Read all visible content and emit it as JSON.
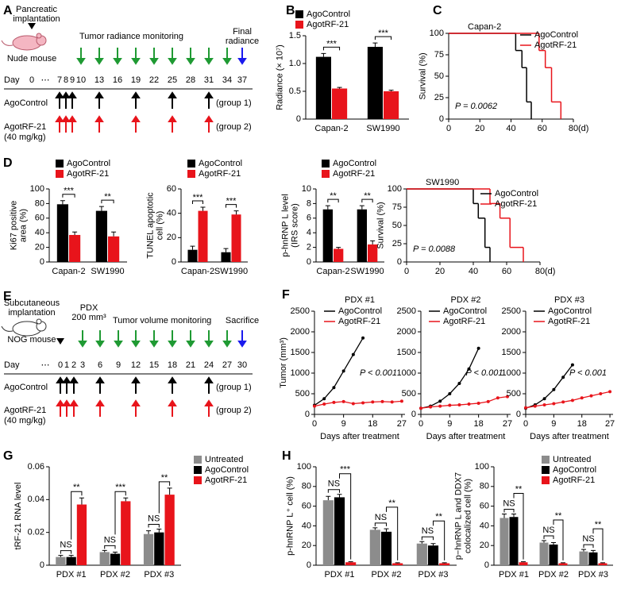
{
  "chart_data": [
    {
      "type": "bar",
      "panel": "B",
      "ylabel": "Radiance (× 10⁷)",
      "categories": [
        "Capan-2",
        "SW1990"
      ],
      "series": [
        {
          "name": "AgoControl",
          "color": "#000000",
          "values": [
            1.12,
            1.3
          ],
          "errors": [
            0.06,
            0.07
          ]
        },
        {
          "name": "AgotRF-21",
          "color": "#e8141b",
          "values": [
            0.55,
            0.5
          ],
          "errors": [
            0.02,
            0.02
          ]
        }
      ],
      "significance": [
        "***",
        "***"
      ],
      "ylim": [
        0,
        1.5
      ],
      "yticks": [
        0,
        0.5,
        {
          "value": 1,
          "label": "1.0"
        },
        1.5
      ]
    },
    {
      "type": "step",
      "panel": "C",
      "title": "Capan-2",
      "ylabel": "Survival (%)",
      "xlabel": "(d)",
      "annotation": "P = 0.0062",
      "series": [
        {
          "name": "AgoControl",
          "color": "#000000",
          "x": [
            0,
            43,
            47,
            50,
            53
          ],
          "values": [
            100,
            80,
            60,
            20,
            0
          ]
        },
        {
          "name": "AgotRF-21",
          "color": "#e8141b",
          "x": [
            0,
            58,
            62,
            66,
            72
          ],
          "values": [
            100,
            80,
            60,
            20,
            0
          ]
        }
      ],
      "xlim": [
        0,
        80
      ],
      "xticks": [
        0,
        20,
        40,
        60,
        80
      ],
      "ylim": [
        0,
        100
      ],
      "yticks": [
        0,
        25,
        50,
        75,
        100
      ]
    },
    {
      "type": "bar",
      "panel": "D",
      "ylabel": [
        "Ki67 positive",
        "area (%)"
      ],
      "categories": [
        "Capan-2",
        "SW1990"
      ],
      "series": [
        {
          "name": "AgoControl",
          "color": "#000000",
          "values": [
            79,
            70
          ],
          "errors": [
            5,
            6
          ]
        },
        {
          "name": "AgotRF-21",
          "color": "#e8141b",
          "values": [
            37,
            35
          ],
          "errors": [
            4,
            6
          ]
        }
      ],
      "significance": [
        "***",
        "**"
      ],
      "ylim": [
        0,
        100
      ],
      "yticks": [
        0,
        20,
        40,
        60,
        80,
        100
      ]
    },
    {
      "type": "bar",
      "ylabel": [
        "TUNEL apoptotic",
        "cell (%)"
      ],
      "categories": [
        "Capan-2",
        "SW1990"
      ],
      "series": [
        {
          "name": "AgoControl",
          "color": "#000000",
          "values": [
            10,
            8
          ],
          "errors": [
            3,
            3
          ]
        },
        {
          "name": "AgotRF-21",
          "color": "#e8141b",
          "values": [
            42,
            39
          ],
          "errors": [
            3,
            3
          ]
        }
      ],
      "significance": [
        "***",
        "***"
      ],
      "ylim": [
        0,
        60
      ],
      "yticks": [
        0,
        20,
        40,
        60
      ]
    },
    {
      "type": "bar",
      "ylabel": [
        "p-hnRNP L level",
        "(IRS score)"
      ],
      "categories": [
        "Capan-2",
        "SW1990"
      ],
      "series": [
        {
          "name": "AgoControl",
          "color": "#000000",
          "values": [
            7.2,
            7.2
          ],
          "errors": [
            0.5,
            0.5
          ]
        },
        {
          "name": "AgotRF-21",
          "color": "#e8141b",
          "values": [
            1.8,
            2.4
          ],
          "errors": [
            0.2,
            0.5
          ]
        }
      ],
      "significance": [
        "**",
        "**"
      ],
      "ylim": [
        0,
        10
      ],
      "yticks": [
        0,
        2,
        4,
        6,
        8,
        10
      ]
    },
    {
      "type": "step",
      "title": "SW1990",
      "ylabel": "Survival (%)",
      "xlabel": "(d)",
      "annotation": "P = 0.0088",
      "series": [
        {
          "name": "AgoControl",
          "color": "#000000",
          "x": [
            0,
            40,
            43,
            47,
            50
          ],
          "values": [
            100,
            80,
            60,
            20,
            0
          ]
        },
        {
          "name": "AgotRF-21",
          "color": "#e8141b",
          "x": [
            0,
            50,
            56,
            62,
            70
          ],
          "values": [
            100,
            80,
            60,
            20,
            0
          ]
        }
      ],
      "xlim": [
        0,
        80
      ],
      "xticks": [
        0,
        20,
        40,
        60,
        80
      ],
      "ylim": [
        0,
        100
      ],
      "yticks": [
        0,
        25,
        50,
        75,
        100
      ]
    },
    {
      "type": "line",
      "panel": "F",
      "title": "PDX #1",
      "ylabel": "Tumor (mm³)",
      "xlabel": "Days after treatment",
      "annotation": "P < 0.001",
      "x": [
        0,
        3,
        6,
        9,
        12,
        15,
        18,
        21,
        24,
        27
      ],
      "series": [
        {
          "name": "AgoControl",
          "color": "#000000",
          "values": [
            220,
            380,
            650,
            1050,
            1450,
            1850,
            null,
            null,
            null,
            null
          ]
        },
        {
          "name": "AgotRF-21",
          "color": "#e8141b",
          "values": [
            200,
            250,
            290,
            310,
            260,
            280,
            300,
            310,
            300,
            320
          ]
        }
      ],
      "xlim": [
        0,
        28
      ],
      "xticks": [
        0,
        9,
        18,
        27
      ],
      "ylim": [
        0,
        2500
      ],
      "yticks": [
        0,
        500,
        1000,
        1500,
        2000,
        2500
      ]
    },
    {
      "type": "line",
      "title": "PDX #2",
      "xlabel": "Days after treatment",
      "annotation": "P < 0.001",
      "x": [
        0,
        3,
        6,
        9,
        12,
        15,
        18,
        21,
        24,
        27
      ],
      "series": [
        {
          "name": "AgoControl",
          "color": "#000000",
          "values": [
            150,
            200,
            320,
            500,
            750,
            1100,
            1600,
            null,
            null,
            null
          ]
        },
        {
          "name": "AgotRF-21",
          "color": "#e8141b",
          "values": [
            150,
            180,
            200,
            220,
            230,
            250,
            270,
            310,
            400,
            430
          ]
        }
      ],
      "xlim": [
        0,
        28
      ],
      "xticks": [
        0,
        9,
        18,
        27
      ],
      "ylim": [
        0,
        2500
      ],
      "yticks": [
        0,
        500,
        1000,
        1500,
        2000,
        2500
      ]
    },
    {
      "type": "line",
      "title": "PDX #3",
      "xlabel": "Days after treatment",
      "annotation": "P < 0.001",
      "x": [
        0,
        3,
        6,
        9,
        12,
        15,
        18,
        21,
        24,
        27
      ],
      "series": [
        {
          "name": "AgoControl",
          "color": "#000000",
          "values": [
            150,
            230,
            380,
            600,
            900,
            1200,
            null,
            null,
            null,
            null
          ]
        },
        {
          "name": "AgotRF-21",
          "color": "#e8141b",
          "values": [
            160,
            200,
            230,
            260,
            300,
            340,
            400,
            450,
            500,
            550
          ]
        }
      ],
      "xlim": [
        0,
        28
      ],
      "xticks": [
        0,
        9,
        18,
        27
      ],
      "ylim": [
        0,
        2500
      ],
      "yticks": [
        0,
        500,
        1000,
        1500,
        2000,
        2500
      ]
    },
    {
      "type": "bar",
      "panel": "G",
      "ylabel": "tRF-21 RNA level",
      "categories": [
        "PDX #1",
        "PDX #2",
        "PDX #3"
      ],
      "series": [
        {
          "name": "Untreated",
          "color": "#8c8c8c",
          "values": [
            0.005,
            0.008,
            0.019
          ],
          "errors": [
            0.001,
            0.001,
            0.002
          ]
        },
        {
          "name": "AgoControl",
          "color": "#000000",
          "values": [
            0.005,
            0.007,
            0.02
          ],
          "errors": [
            0.001,
            0.001,
            0.002
          ]
        },
        {
          "name": "AgotRF-21",
          "color": "#e8141b",
          "values": [
            0.037,
            0.039,
            0.043
          ],
          "errors": [
            0.004,
            0.002,
            0.004
          ]
        }
      ],
      "ns": [
        "NS",
        "NS",
        "NS"
      ],
      "significance": [
        "**",
        "***",
        "**"
      ],
      "ylim": [
        0,
        0.06
      ],
      "yticks": [
        0,
        0.02,
        0.04,
        0.06
      ]
    },
    {
      "type": "bar",
      "panel": "H",
      "ylabel": "p-hnRNP L⁺ cell (%)",
      "categories": [
        "PDX #1",
        "PDX #2",
        "PDX #3"
      ],
      "series": [
        {
          "color": "#8c8c8c",
          "values": [
            66,
            36,
            22
          ],
          "errors": [
            4,
            2,
            2
          ]
        },
        {
          "color": "#000000",
          "values": [
            69,
            34,
            20
          ],
          "errors": [
            3,
            3,
            2
          ]
        },
        {
          "color": "#e8141b",
          "values": [
            3,
            2,
            2
          ],
          "errors": [
            0.5,
            0.5,
            0.5
          ]
        }
      ],
      "ns": [
        "NS",
        "NS",
        "NS"
      ],
      "significance": [
        "***",
        "**",
        "**"
      ],
      "ylim": [
        0,
        100
      ],
      "yticks": [
        0,
        20,
        40,
        60,
        80,
        100
      ]
    },
    {
      "type": "bar",
      "ylabel": [
        "p−hnRNP L and DDX7",
        "colocalized cell (%)"
      ],
      "categories": [
        "PDX #1",
        "PDX #2",
        "PDX #3"
      ],
      "series": [
        {
          "name": "Untreated",
          "color": "#8c8c8c",
          "values": [
            48,
            23,
            14
          ],
          "errors": [
            4,
            2,
            2
          ]
        },
        {
          "name": "AgoControl",
          "color": "#000000",
          "values": [
            49,
            21,
            13
          ],
          "errors": [
            3,
            2,
            2
          ]
        },
        {
          "name": "AgotRF-21",
          "color": "#e8141b",
          "values": [
            3,
            2,
            2
          ],
          "errors": [
            0.5,
            0.5,
            0.5
          ]
        }
      ],
      "ns": [
        "NS",
        "NS",
        "NS"
      ],
      "significance": [
        "**",
        "**",
        "**"
      ],
      "ylim": [
        0,
        100
      ],
      "yticks": [
        0,
        20,
        40,
        60,
        80,
        100
      ]
    }
  ],
  "schedules": [
    {
      "panel": "A",
      "implantation": [
        "Pancreatic",
        "implantation"
      ],
      "animal": "Nude mouse",
      "monitoring": "Tumor radiance monitoring",
      "monitoring_color": "#1f9a33",
      "monitoring_days": [
        10,
        13,
        16,
        19,
        22,
        25,
        28,
        31,
        34
      ],
      "final": [
        "Final",
        "radiance"
      ],
      "final_color": "#1a1aee",
      "final_day": 37,
      "day_label": "Day",
      "days": [
        "0",
        "⋯",
        "7",
        "8",
        "9",
        "10",
        "13",
        "16",
        "19",
        "22",
        "25",
        "28",
        "31",
        "34",
        "37"
      ],
      "groups": [
        {
          "name": [
            "AgoControl"
          ],
          "label": "(group 1)",
          "color": "#000000",
          "days": [
            7,
            8,
            9,
            13,
            19,
            25,
            31
          ]
        },
        {
          "name": [
            "AgotRF-21",
            "(40 mg/kg)"
          ],
          "label": "(group 2)",
          "color": "#e8141b",
          "days": [
            7,
            8,
            9,
            13,
            19,
            25,
            31
          ]
        }
      ]
    },
    {
      "panel": "E",
      "implantation": [
        "Subcutaneous",
        "implantation"
      ],
      "animal": "NOG mouse",
      "pdx": [
        "PDX",
        "200 mm³"
      ],
      "monitoring": "Tumor volume monitoring",
      "monitoring_color": "#1f9a33",
      "monitoring_days": [
        3,
        6,
        9,
        12,
        15,
        18,
        21,
        24,
        27
      ],
      "final": [
        "Sacrifice"
      ],
      "final_color": "#1a1aee",
      "final_day": 30,
      "day_label": "Day",
      "days": [
        "⋯",
        "0",
        "1",
        "2",
        "3",
        "6",
        "9",
        "12",
        "15",
        "18",
        "21",
        "24",
        "27",
        "30"
      ],
      "groups": [
        {
          "name": [
            "AgoControl"
          ],
          "label": "(group 1)",
          "color": "#000000",
          "days": [
            0,
            1,
            2,
            6,
            12,
            18,
            24
          ]
        },
        {
          "name": [
            "AgotRF-21",
            "(40 mg/kg)"
          ],
          "label": "(group 2)",
          "color": "#e8141b",
          "days": [
            0,
            1,
            2,
            6,
            12,
            18,
            24
          ]
        }
      ]
    }
  ]
}
